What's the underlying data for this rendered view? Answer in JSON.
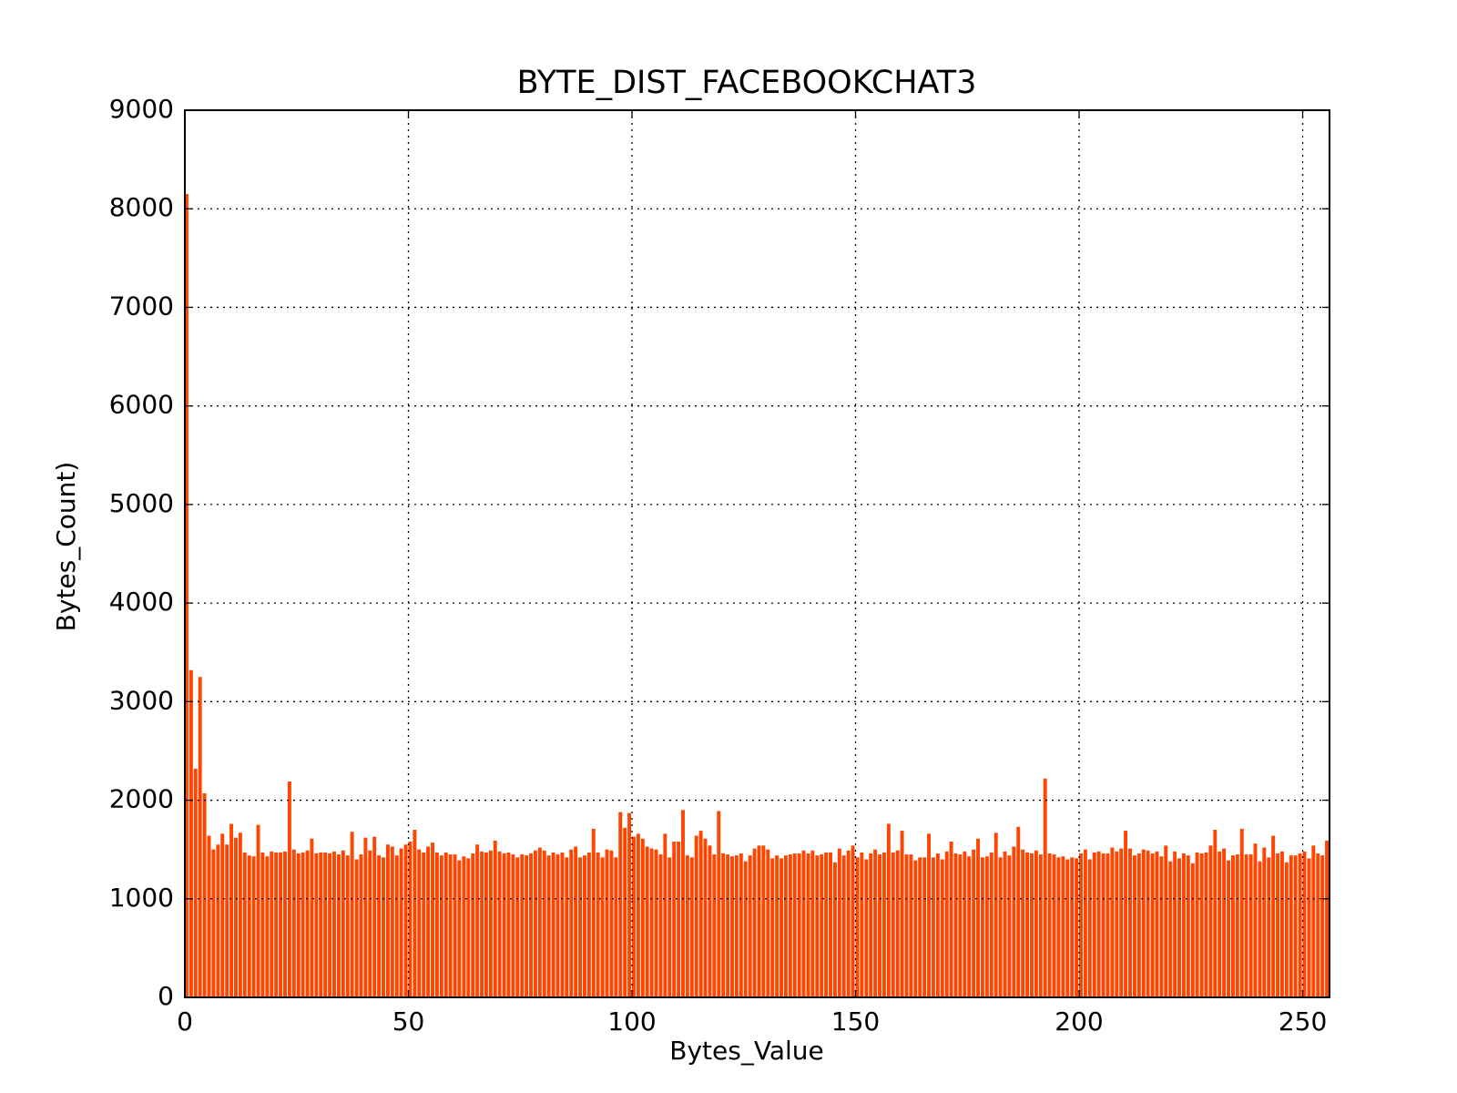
{
  "chart_data": {
    "type": "bar",
    "title": "BYTE_DIST_FACEBOOKCHAT3",
    "x_label": "Bytes_Value",
    "y_label": "Bytes_Count)",
    "color": "#ff4500",
    "grid": true,
    "xlim": [
      0,
      256
    ],
    "xticks": [
      0,
      50,
      100,
      150,
      200,
      250
    ],
    "ylim": [
      0,
      9000
    ],
    "yticks": [
      0,
      1000,
      2000,
      3000,
      4000,
      5000,
      6000,
      7000,
      8000,
      9000
    ],
    "x": [
      0,
      1,
      2,
      3,
      4,
      5,
      6,
      7,
      8,
      9,
      10,
      11,
      12,
      13,
      14,
      15,
      16,
      17,
      18,
      19,
      20,
      21,
      22,
      23,
      24,
      25,
      26,
      27,
      28,
      29,
      30,
      31,
      32,
      33,
      34,
      35,
      36,
      37,
      38,
      39,
      40,
      41,
      42,
      43,
      44,
      45,
      46,
      47,
      48,
      49,
      50,
      51,
      52,
      53,
      54,
      55,
      56,
      57,
      58,
      59,
      60,
      61,
      62,
      63,
      64,
      65,
      66,
      67,
      68,
      69,
      70,
      71,
      72,
      73,
      74,
      75,
      76,
      77,
      78,
      79,
      80,
      81,
      82,
      83,
      84,
      85,
      86,
      87,
      88,
      89,
      90,
      91,
      92,
      93,
      94,
      95,
      96,
      97,
      98,
      99,
      100,
      101,
      102,
      103,
      104,
      105,
      106,
      107,
      108,
      109,
      110,
      111,
      112,
      113,
      114,
      115,
      116,
      117,
      118,
      119,
      120,
      121,
      122,
      123,
      124,
      125,
      126,
      127,
      128,
      129,
      130,
      131,
      132,
      133,
      134,
      135,
      136,
      137,
      138,
      139,
      140,
      141,
      142,
      143,
      144,
      145,
      146,
      147,
      148,
      149,
      150,
      151,
      152,
      153,
      154,
      155,
      156,
      157,
      158,
      159,
      160,
      161,
      162,
      163,
      164,
      165,
      166,
      167,
      168,
      169,
      170,
      171,
      172,
      173,
      174,
      175,
      176,
      177,
      178,
      179,
      180,
      181,
      182,
      183,
      184,
      185,
      186,
      187,
      188,
      189,
      190,
      191,
      192,
      193,
      194,
      195,
      196,
      197,
      198,
      199,
      200,
      201,
      202,
      203,
      204,
      205,
      206,
      207,
      208,
      209,
      210,
      211,
      212,
      213,
      214,
      215,
      216,
      217,
      218,
      219,
      220,
      221,
      222,
      223,
      224,
      225,
      226,
      227,
      228,
      229,
      230,
      231,
      232,
      233,
      234,
      235,
      236,
      237,
      238,
      239,
      240,
      241,
      242,
      243,
      244,
      245,
      246,
      247,
      248,
      249,
      250,
      251,
      252,
      253,
      254,
      255
    ],
    "values": [
      8150,
      3320,
      2320,
      3250,
      2070,
      1640,
      1500,
      1550,
      1660,
      1550,
      1760,
      1620,
      1670,
      1470,
      1440,
      1430,
      1750,
      1470,
      1430,
      1480,
      1470,
      1470,
      1480,
      2190,
      1500,
      1460,
      1470,
      1490,
      1610,
      1460,
      1470,
      1470,
      1460,
      1480,
      1450,
      1490,
      1440,
      1680,
      1400,
      1450,
      1620,
      1490,
      1630,
      1440,
      1420,
      1550,
      1530,
      1440,
      1510,
      1550,
      1580,
      1700,
      1500,
      1470,
      1530,
      1570,
      1470,
      1440,
      1470,
      1450,
      1450,
      1390,
      1430,
      1410,
      1460,
      1550,
      1480,
      1470,
      1490,
      1590,
      1480,
      1460,
      1470,
      1450,
      1420,
      1450,
      1440,
      1460,
      1490,
      1520,
      1490,
      1440,
      1470,
      1450,
      1470,
      1420,
      1500,
      1530,
      1420,
      1440,
      1470,
      1710,
      1470,
      1420,
      1500,
      1490,
      1420,
      1880,
      1720,
      1870,
      1630,
      1660,
      1610,
      1530,
      1510,
      1500,
      1450,
      1660,
      1420,
      1580,
      1580,
      1900,
      1440,
      1420,
      1640,
      1690,
      1610,
      1540,
      1450,
      1890,
      1460,
      1450,
      1430,
      1440,
      1460,
      1380,
      1440,
      1510,
      1540,
      1540,
      1500,
      1410,
      1440,
      1410,
      1440,
      1450,
      1460,
      1460,
      1490,
      1460,
      1490,
      1440,
      1450,
      1470,
      1470,
      1370,
      1510,
      1440,
      1490,
      1540,
      1420,
      1470,
      1400,
      1460,
      1500,
      1450,
      1470,
      1760,
      1470,
      1490,
      1690,
      1450,
      1450,
      1390,
      1420,
      1420,
      1660,
      1420,
      1460,
      1400,
      1480,
      1580,
      1460,
      1450,
      1480,
      1430,
      1500,
      1610,
      1420,
      1430,
      1470,
      1670,
      1420,
      1480,
      1440,
      1530,
      1730,
      1500,
      1470,
      1460,
      1490,
      1450,
      2220,
      1460,
      1450,
      1420,
      1430,
      1400,
      1420,
      1410,
      1460,
      1500,
      1400,
      1470,
      1480,
      1460,
      1460,
      1520,
      1480,
      1510,
      1690,
      1510,
      1440,
      1460,
      1500,
      1490,
      1460,
      1480,
      1430,
      1540,
      1380,
      1480,
      1410,
      1460,
      1440,
      1360,
      1470,
      1460,
      1470,
      1540,
      1700,
      1480,
      1510,
      1390,
      1440,
      1450,
      1710,
      1450,
      1450,
      1560,
      1380,
      1520,
      1420,
      1640,
      1460,
      1480,
      1370,
      1440,
      1440,
      1460,
      1480,
      1410,
      1540,
      1460,
      1440,
      1590
    ]
  }
}
